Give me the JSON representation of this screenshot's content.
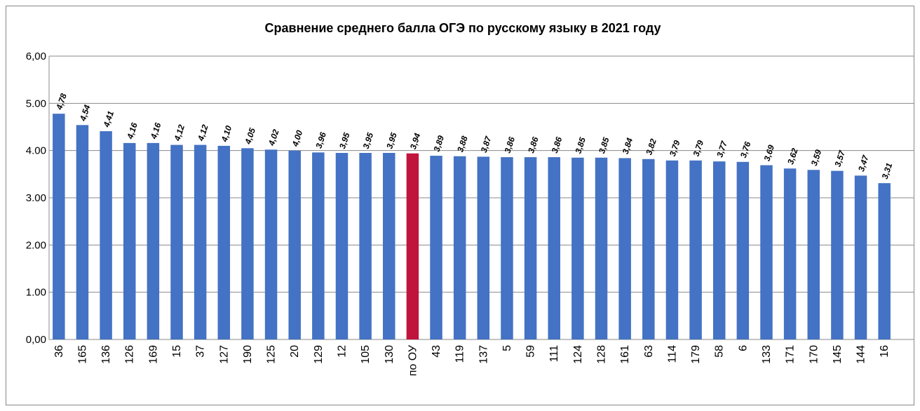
{
  "chart_data": {
    "type": "bar",
    "title": "Сравнение среднего балла ОГЭ по русскому языку в 2021 году",
    "categories": [
      "36",
      "165",
      "136",
      "126",
      "169",
      "15",
      "37",
      "127",
      "190",
      "125",
      "20",
      "129",
      "12",
      "105",
      "130",
      "по ОУ",
      "43",
      "119",
      "137",
      "5",
      "59",
      "111",
      "124",
      "128",
      "161",
      "63",
      "114",
      "179",
      "58",
      "6",
      "133",
      "171",
      "170",
      "145",
      "144",
      "16"
    ],
    "values": [
      4.78,
      4.54,
      4.41,
      4.16,
      4.16,
      4.12,
      4.12,
      4.1,
      4.05,
      4.02,
      4.0,
      3.96,
      3.95,
      3.95,
      3.95,
      3.94,
      3.89,
      3.88,
      3.87,
      3.86,
      3.86,
      3.86,
      3.85,
      3.85,
      3.84,
      3.82,
      3.79,
      3.79,
      3.77,
      3.76,
      3.69,
      3.62,
      3.59,
      3.57,
      3.47,
      3.31
    ],
    "value_labels": [
      "4,78",
      "4,54",
      "4,41",
      "4,16",
      "4,16",
      "4,12",
      "4,12",
      "4,10",
      "4,05",
      "4,02",
      "4,00",
      "3,96",
      "3,95",
      "3,95",
      "3,95",
      "3,94",
      "3,89",
      "3,88",
      "3,87",
      "3,86",
      "3,86",
      "3,86",
      "3,85",
      "3,85",
      "3,84",
      "3,82",
      "3,79",
      "3,79",
      "3,77",
      "3,76",
      "3,69",
      "3,62",
      "3,59",
      "3,57",
      "3,47",
      "3,31"
    ],
    "colors": [
      "#4472c4",
      "#4472c4",
      "#4472c4",
      "#4472c4",
      "#4472c4",
      "#4472c4",
      "#4472c4",
      "#4472c4",
      "#4472c4",
      "#4472c4",
      "#4472c4",
      "#4472c4",
      "#4472c4",
      "#4472c4",
      "#4472c4",
      "#c0143c",
      "#4472c4",
      "#4472c4",
      "#4472c4",
      "#4472c4",
      "#4472c4",
      "#4472c4",
      "#4472c4",
      "#4472c4",
      "#4472c4",
      "#4472c4",
      "#4472c4",
      "#4472c4",
      "#4472c4",
      "#4472c4",
      "#4472c4",
      "#4472c4",
      "#4472c4",
      "#4472c4",
      "#4472c4",
      "#4472c4"
    ],
    "ylim": [
      0,
      6
    ],
    "yticks": [
      {
        "value": 0,
        "label": "0,00"
      },
      {
        "value": 1,
        "label": "1.00"
      },
      {
        "value": 2,
        "label": "2.00"
      },
      {
        "value": 3,
        "label": "3.00"
      },
      {
        "value": 4,
        "label": "4.00"
      },
      {
        "value": 5,
        "label": "5.00"
      },
      {
        "value": 6,
        "label": "6,00"
      }
    ],
    "grid": true
  }
}
